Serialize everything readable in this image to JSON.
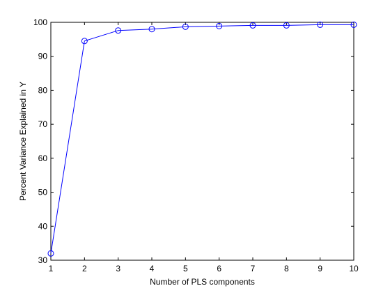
{
  "chart_data": {
    "type": "line",
    "title": "",
    "xlabel": "Number of PLS components",
    "ylabel": "Percent Variance Explained in Y",
    "x": [
      1,
      2,
      3,
      4,
      5,
      6,
      7,
      8,
      9,
      10
    ],
    "series": [
      {
        "values": [
          32.0,
          94.5,
          97.6,
          98.0,
          98.7,
          98.9,
          99.1,
          99.1,
          99.3,
          99.3
        ],
        "color": "#0000ff",
        "marker": "circle"
      }
    ],
    "xlim": [
      1,
      10
    ],
    "ylim": [
      30,
      100
    ],
    "xticks": [
      1,
      2,
      3,
      4,
      5,
      6,
      7,
      8,
      9,
      10
    ],
    "yticks": [
      30,
      40,
      50,
      60,
      70,
      80,
      90,
      100
    ],
    "grid": false,
    "legend": "none"
  }
}
